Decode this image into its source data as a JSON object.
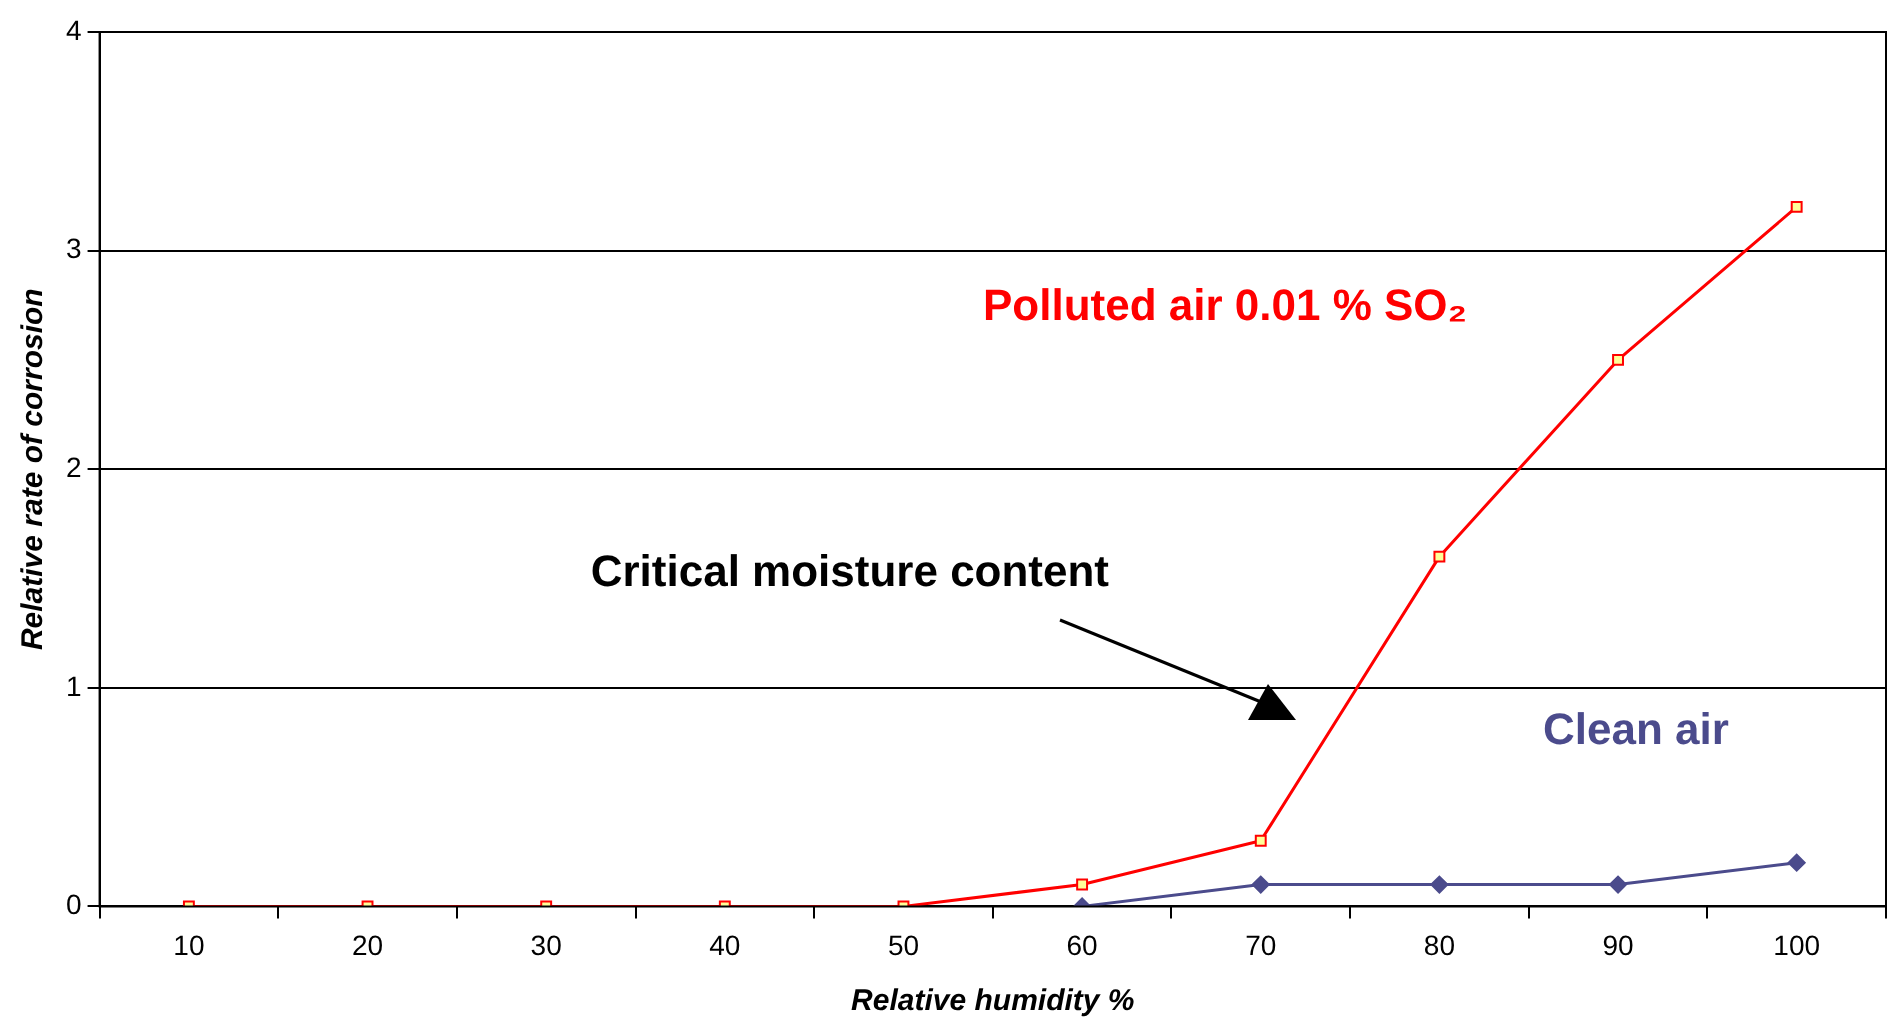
{
  "chart_data": {
    "type": "line",
    "xlabel": "Relative humidity %",
    "ylabel": "Relative rate of corrosion",
    "categories": [
      "10",
      "20",
      "30",
      "40",
      "50",
      "60",
      "70",
      "80",
      "90",
      "100"
    ],
    "series": [
      {
        "name": "Polluted air 0.01 % SO₂",
        "color": "#ff0000",
        "marker": "square",
        "values": [
          0,
          0,
          0,
          0,
          0,
          0.1,
          0.3,
          1.6,
          2.5,
          3.2
        ]
      },
      {
        "name": "Clean air",
        "color": "#4b4b8c",
        "marker": "diamond",
        "values": [
          null,
          null,
          null,
          null,
          null,
          0,
          0.1,
          0.1,
          0.1,
          0.2
        ]
      }
    ],
    "annotations": [
      "Critical moisture content"
    ],
    "ylim": [
      0,
      4
    ],
    "yticks": [
      0,
      1,
      2,
      3,
      4
    ],
    "grid": "y",
    "legend": false
  }
}
